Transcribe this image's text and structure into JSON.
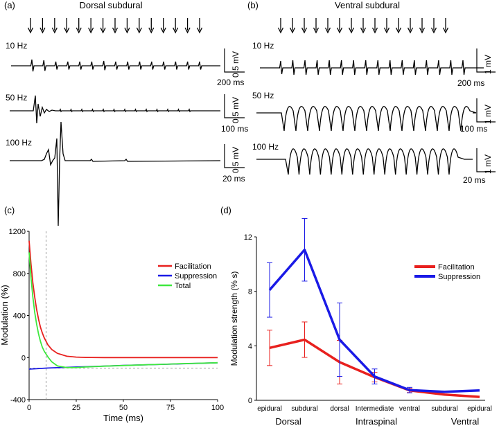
{
  "chart_data": [
    {
      "type": "line",
      "panel": "(a)",
      "title": "Dorsal subdural",
      "description_items": {
        "rows": [
          {
            "freq": "10 Hz",
            "scale_y": "0.5 mV",
            "scale_x": "200 ms"
          },
          {
            "freq": "50 Hz",
            "scale_y": "0.5 mV",
            "scale_x": "100 ms"
          },
          {
            "freq": "100 Hz",
            "scale_y": "0.5 mV",
            "scale_x": "20 ms"
          }
        ],
        "stimulus_count": 15
      }
    },
    {
      "type": "line",
      "panel": "(b)",
      "title": "Ventral subdural",
      "description_items": {
        "rows": [
          {
            "freq": "10 Hz",
            "scale_y": "1 mV",
            "scale_x": "200 ms"
          },
          {
            "freq": "50 Hz",
            "scale_y": "1 mV",
            "scale_x": "100 ms"
          },
          {
            "freq": "100 Hz",
            "scale_y": "1 mV",
            "scale_x": "20 ms"
          }
        ],
        "stimulus_count": 15
      }
    },
    {
      "type": "line",
      "panel": "(c)",
      "xlabel": "Time (ms)",
      "ylabel": "Modulation (%)",
      "xlim": [
        0,
        100
      ],
      "ylim": [
        -400,
        1200
      ],
      "xticks": [
        0,
        25,
        50,
        75,
        100
      ],
      "yticks": [
        -400,
        0,
        400,
        800,
        1200
      ],
      "reference_lines": {
        "vertical_x": 9,
        "horizontal_y": -100
      },
      "series": [
        {
          "name": "Facilitation",
          "color": "#e8201e",
          "x": [
            0,
            1,
            2,
            3,
            4,
            5,
            6,
            7,
            8,
            10,
            12,
            15,
            20,
            25,
            30,
            40,
            50,
            60,
            70,
            80,
            90,
            100
          ],
          "y": [
            1110,
            890,
            710,
            570,
            455,
            365,
            290,
            235,
            188,
            120,
            77,
            40,
            12,
            4,
            1,
            0,
            0,
            0,
            0,
            0,
            0,
            0
          ]
        },
        {
          "name": "Suppression",
          "color": "#1a1ae6",
          "x": [
            0,
            10,
            20,
            30,
            40,
            50,
            60,
            70,
            80,
            90,
            100
          ],
          "y": [
            -110,
            -100,
            -93,
            -87,
            -81,
            -75,
            -70,
            -65,
            -60,
            -55,
            -50
          ]
        },
        {
          "name": "Total",
          "color": "#3ee83e",
          "x": [
            0,
            1,
            2,
            3,
            4,
            5,
            6,
            7,
            8,
            10,
            12,
            15,
            20,
            25,
            30,
            40,
            50,
            60,
            70,
            80,
            90,
            100
          ],
          "y": [
            1000,
            760,
            575,
            425,
            315,
            225,
            155,
            100,
            60,
            5,
            -40,
            -80,
            -95,
            -96,
            -90,
            -82,
            -76,
            -70,
            -65,
            -59,
            -54,
            -50
          ]
        }
      ]
    },
    {
      "type": "line",
      "panel": "(d)",
      "xlabel": "",
      "ylabel": "Modulation strength (% s)",
      "ylim": [
        0,
        12
      ],
      "yticks": [
        0,
        4,
        8,
        12
      ],
      "categories": [
        "epidural",
        "subdural",
        "dorsal",
        "Intermediate",
        "ventral",
        "subdural",
        "epidural"
      ],
      "groups": [
        "Dorsal",
        "Intraspinal",
        "Ventral"
      ],
      "series": [
        {
          "name": "Facilitation",
          "color": "#e8201e",
          "values": [
            3.85,
            4.45,
            2.8,
            1.7,
            0.72,
            0.42,
            0.25
          ],
          "errors": [
            1.3,
            1.3,
            1.6,
            0.35,
            0.15,
            null,
            null
          ]
        },
        {
          "name": "Suppression",
          "color": "#1a1ae6",
          "values": [
            8.1,
            11.05,
            4.45,
            1.75,
            0.75,
            0.62,
            0.72
          ],
          "errors": [
            2.0,
            2.3,
            2.7,
            0.55,
            0.2,
            null,
            null
          ]
        }
      ]
    }
  ]
}
